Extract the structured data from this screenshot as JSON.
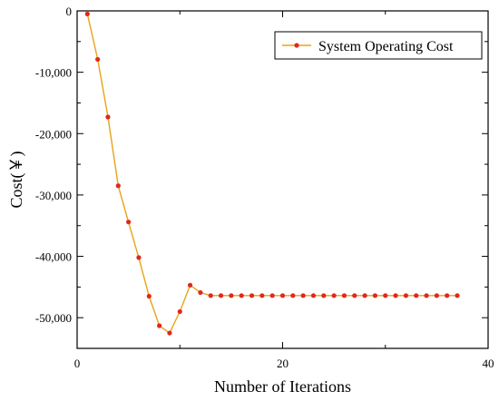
{
  "chart_data": {
    "type": "line",
    "xlabel": "Number of Iterations",
    "ylabel": "Cost(￥)",
    "xlim": [
      0,
      40
    ],
    "ylim": [
      -55000,
      0
    ],
    "x_ticks": [
      0,
      20,
      40
    ],
    "x_tick_labels": [
      "0",
      "20",
      "40"
    ],
    "y_ticks": [
      0,
      -10000,
      -20000,
      -30000,
      -40000,
      -50000
    ],
    "y_tick_labels": [
      "0",
      "-10,000",
      "-20,000",
      "-30,000",
      "-40,000",
      "-50,000"
    ],
    "grid": false,
    "legend_position": "top-right",
    "colors": {
      "line": "#e8a317",
      "marker": "#e0281b"
    },
    "series": [
      {
        "name": "System Operating Cost",
        "x": [
          1,
          2,
          3,
          4,
          5,
          6,
          7,
          8,
          9,
          10,
          11,
          12,
          13,
          14,
          15,
          16,
          17,
          18,
          19,
          20,
          21,
          22,
          23,
          24,
          25,
          26,
          27,
          28,
          29,
          30,
          31,
          32,
          33,
          34,
          35,
          36,
          37
        ],
        "y": [
          -500,
          -7900,
          -17300,
          -28500,
          -34400,
          -40200,
          -46500,
          -51300,
          -52500,
          -49000,
          -44700,
          -45900,
          -46400,
          -46400,
          -46400,
          -46400,
          -46400,
          -46400,
          -46400,
          -46400,
          -46400,
          -46400,
          -46400,
          -46400,
          -46400,
          -46400,
          -46400,
          -46400,
          -46400,
          -46400,
          -46400,
          -46400,
          -46400,
          -46400,
          -46400,
          -46400,
          -46400
        ]
      }
    ]
  }
}
